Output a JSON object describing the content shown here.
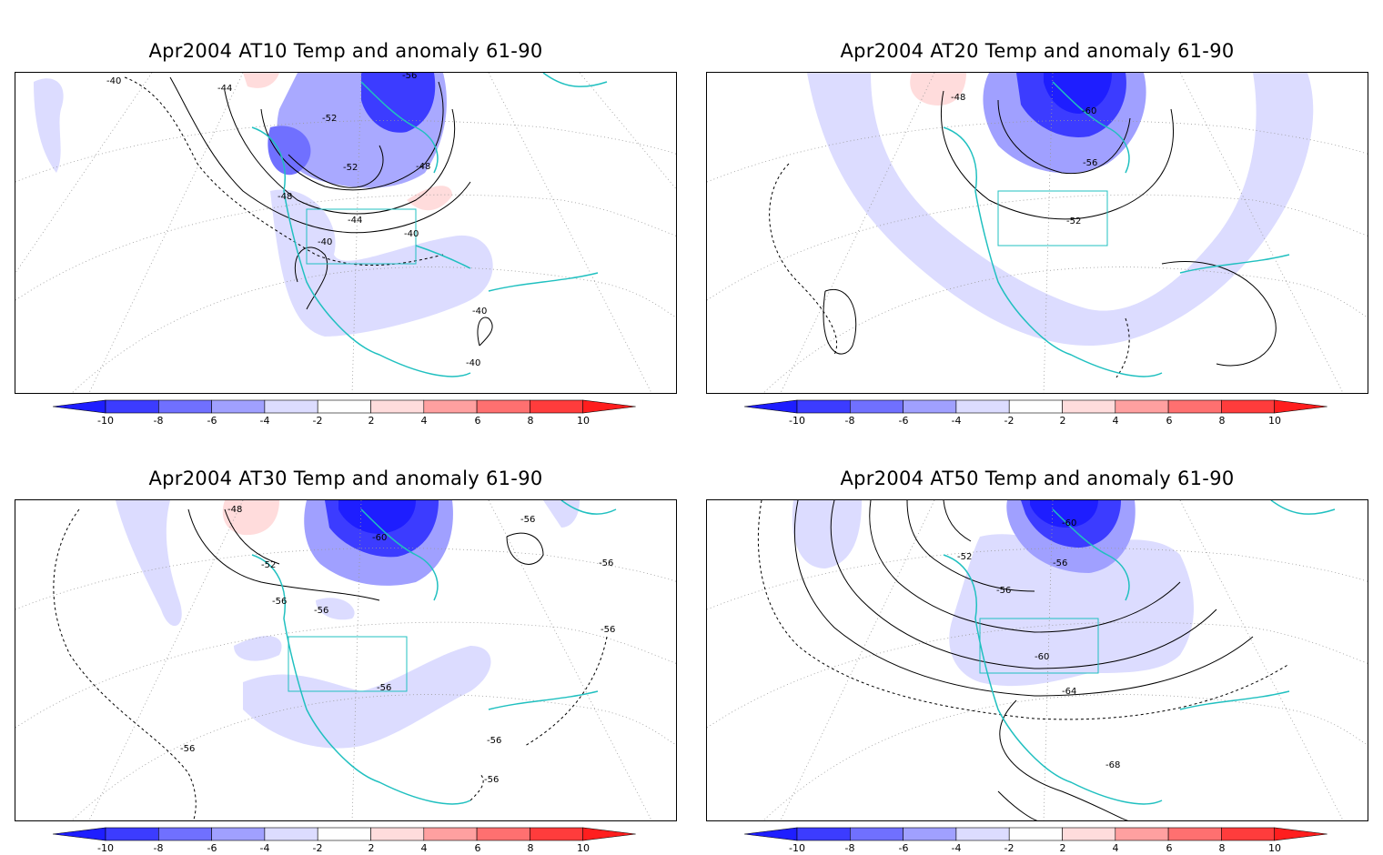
{
  "panels": [
    {
      "title": "Apr2004 AT10 Temp and anomaly 61-90",
      "contour_labels": [
        "-40",
        "-44",
        "-56",
        "-52",
        "-52",
        "-48",
        "-48",
        "-44",
        "-40",
        "-40",
        "-40",
        "-40"
      ]
    },
    {
      "title": "Apr2004 AT20 Temp and anomaly 61-90",
      "contour_labels": [
        "-48",
        "-60",
        "-56",
        "-52"
      ]
    },
    {
      "title": "Apr2004 AT30 Temp and anomaly 61-90",
      "contour_labels": [
        "-48",
        "-60",
        "-52",
        "-56",
        "-56",
        "-56",
        "-56",
        "-56",
        "-56",
        "-56",
        "-56",
        "-56"
      ]
    },
    {
      "title": "Apr2004 AT50 Temp and anomaly 61-90",
      "contour_labels": [
        "-60",
        "-52",
        "-56",
        "-56",
        "-60",
        "-64",
        "-68"
      ]
    }
  ],
  "colorbar": {
    "ticks": [
      "-10",
      "-8",
      "-6",
      "-4",
      "-2",
      "2",
      "4",
      "6",
      "8",
      "10"
    ],
    "colors": [
      "#1e1eff",
      "#3c3cff",
      "#7070ff",
      "#a0a0ff",
      "#dcdcff",
      "#ffffff",
      "#ffdcdc",
      "#ffa0a0",
      "#ff7070",
      "#ff3c3c",
      "#ff1e1e"
    ]
  },
  "coastline_color": "#20c0c0"
}
